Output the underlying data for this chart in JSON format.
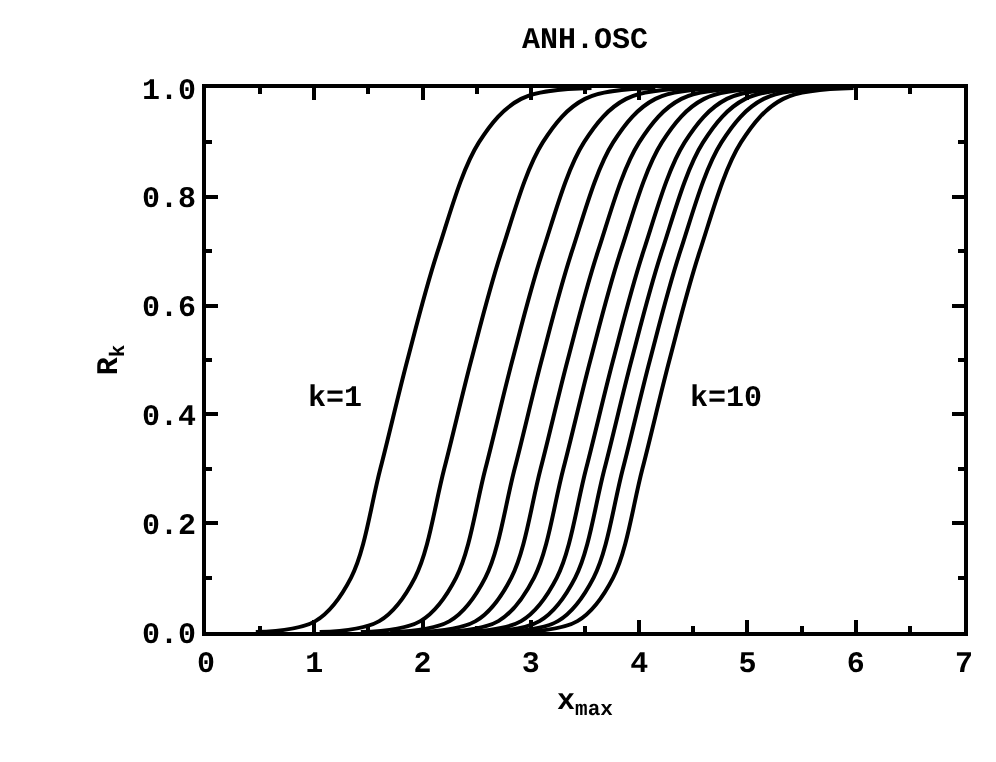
{
  "chart_data": {
    "type": "line",
    "title": "ANH.OSC",
    "xlabel": "x$_{max}$",
    "ylabel": "R$_{k}$",
    "xlim": [
      0,
      7
    ],
    "ylim": [
      0,
      1
    ],
    "xticks": [
      0,
      1,
      2,
      3,
      4,
      5,
      6,
      7
    ],
    "yticks": [
      {
        "value": 0,
        "label": "0.0"
      },
      {
        "value": 0.2,
        "label": "0.2"
      },
      {
        "value": 0.4,
        "label": "0.4"
      },
      {
        "value": 0.6,
        "label": "0.6"
      },
      {
        "value": 0.8,
        "label": "0.8"
      },
      {
        "value": 1,
        "label": "1.0"
      }
    ],
    "marker": "none",
    "line_style": "solid",
    "annotations": [
      "k=1",
      "k=10"
    ],
    "series": [
      {
        "color": "#000000",
        "x": [
          0.46,
          1.01,
          1.34,
          1.61,
          1.86,
          2.14,
          2.52,
          2.91,
          3.56
        ],
        "values": [
          0,
          0.02,
          0.1,
          0.3,
          0.5,
          0.7,
          0.9,
          0.98,
          1
        ]
      },
      {
        "color": "#000000",
        "x": [
          1.05,
          1.6,
          1.93,
          2.2,
          2.45,
          2.73,
          3.11,
          3.5,
          4.15
        ],
        "values": [
          0,
          0.02,
          0.1,
          0.3,
          0.5,
          0.7,
          0.9,
          0.98,
          1
        ]
      },
      {
        "color": "#000000",
        "x": [
          1.43,
          1.98,
          2.31,
          2.58,
          2.83,
          3.11,
          3.49,
          3.88,
          4.53
        ],
        "values": [
          0,
          0.02,
          0.1,
          0.3,
          0.5,
          0.7,
          0.9,
          0.98,
          1
        ]
      },
      {
        "color": "#000000",
        "x": [
          1.7,
          2.25,
          2.58,
          2.85,
          3.1,
          3.38,
          3.76,
          4.15,
          4.8
        ],
        "values": [
          0,
          0.02,
          0.1,
          0.3,
          0.5,
          0.7,
          0.9,
          0.98,
          1
        ]
      },
      {
        "color": "#000000",
        "x": [
          1.94,
          2.49,
          2.82,
          3.09,
          3.34,
          3.62,
          4.0,
          4.39,
          5.04
        ],
        "values": [
          0,
          0.02,
          0.1,
          0.3,
          0.5,
          0.7,
          0.9,
          0.98,
          1
        ]
      },
      {
        "color": "#000000",
        "x": [
          2.15,
          2.7,
          3.03,
          3.3,
          3.55,
          3.83,
          4.21,
          4.6,
          5.25
        ],
        "values": [
          0,
          0.02,
          0.1,
          0.3,
          0.5,
          0.7,
          0.9,
          0.98,
          1
        ]
      },
      {
        "color": "#000000",
        "x": [
          2.36,
          2.91,
          3.24,
          3.51,
          3.76,
          4.04,
          4.42,
          4.81,
          5.46
        ],
        "values": [
          0,
          0.02,
          0.1,
          0.3,
          0.5,
          0.7,
          0.9,
          0.98,
          1
        ]
      },
      {
        "color": "#000000",
        "x": [
          2.53,
          3.08,
          3.41,
          3.68,
          3.93,
          4.21,
          4.59,
          4.98,
          5.63
        ],
        "values": [
          0,
          0.02,
          0.1,
          0.3,
          0.5,
          0.7,
          0.9,
          0.98,
          1
        ]
      },
      {
        "color": "#000000",
        "x": [
          2.7,
          3.25,
          3.58,
          3.85,
          4.1,
          4.38,
          4.76,
          5.15,
          5.8
        ],
        "values": [
          0,
          0.02,
          0.1,
          0.3,
          0.5,
          0.7,
          0.9,
          0.98,
          1
        ]
      },
      {
        "color": "#000000",
        "x": [
          2.88,
          3.43,
          3.76,
          4.03,
          4.28,
          4.56,
          4.94,
          5.33,
          5.98
        ],
        "values": [
          0,
          0.02,
          0.1,
          0.3,
          0.5,
          0.7,
          0.9,
          0.98,
          1
        ]
      }
    ]
  }
}
